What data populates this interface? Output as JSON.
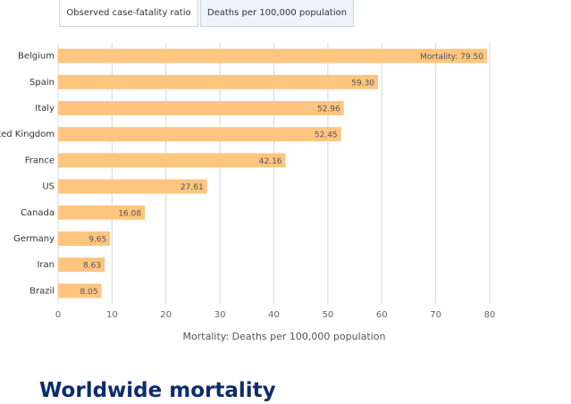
{
  "tabs": [
    {
      "label": "Observed case-fatality ratio",
      "selected": false
    },
    {
      "label": "Deaths per 100,000 population",
      "selected": true
    }
  ],
  "chart_data": {
    "type": "barh",
    "categories": [
      "Belgium",
      "Spain",
      "Italy",
      "United Kingdom",
      "France",
      "US",
      "Canada",
      "Germany",
      "Iran",
      "Brazil"
    ],
    "values": [
      79.5,
      59.3,
      52.96,
      52.45,
      42.16,
      27.61,
      16.08,
      9.65,
      8.63,
      8.05
    ],
    "value_labels": [
      "Mortality: 79.50",
      "59.30",
      "52.96",
      "52.45",
      "42.16",
      "27.61",
      "16.08",
      "9.65",
      "8.63",
      "8.05"
    ],
    "color": "#fdc57f",
    "xlim": [
      0,
      80
    ],
    "xticks": [
      0,
      10,
      20,
      30,
      40,
      50,
      60,
      70,
      80
    ],
    "grid": true,
    "x_label": "Mortality: Deaths per 100,000 population"
  },
  "heading": "Worldwide mortality"
}
